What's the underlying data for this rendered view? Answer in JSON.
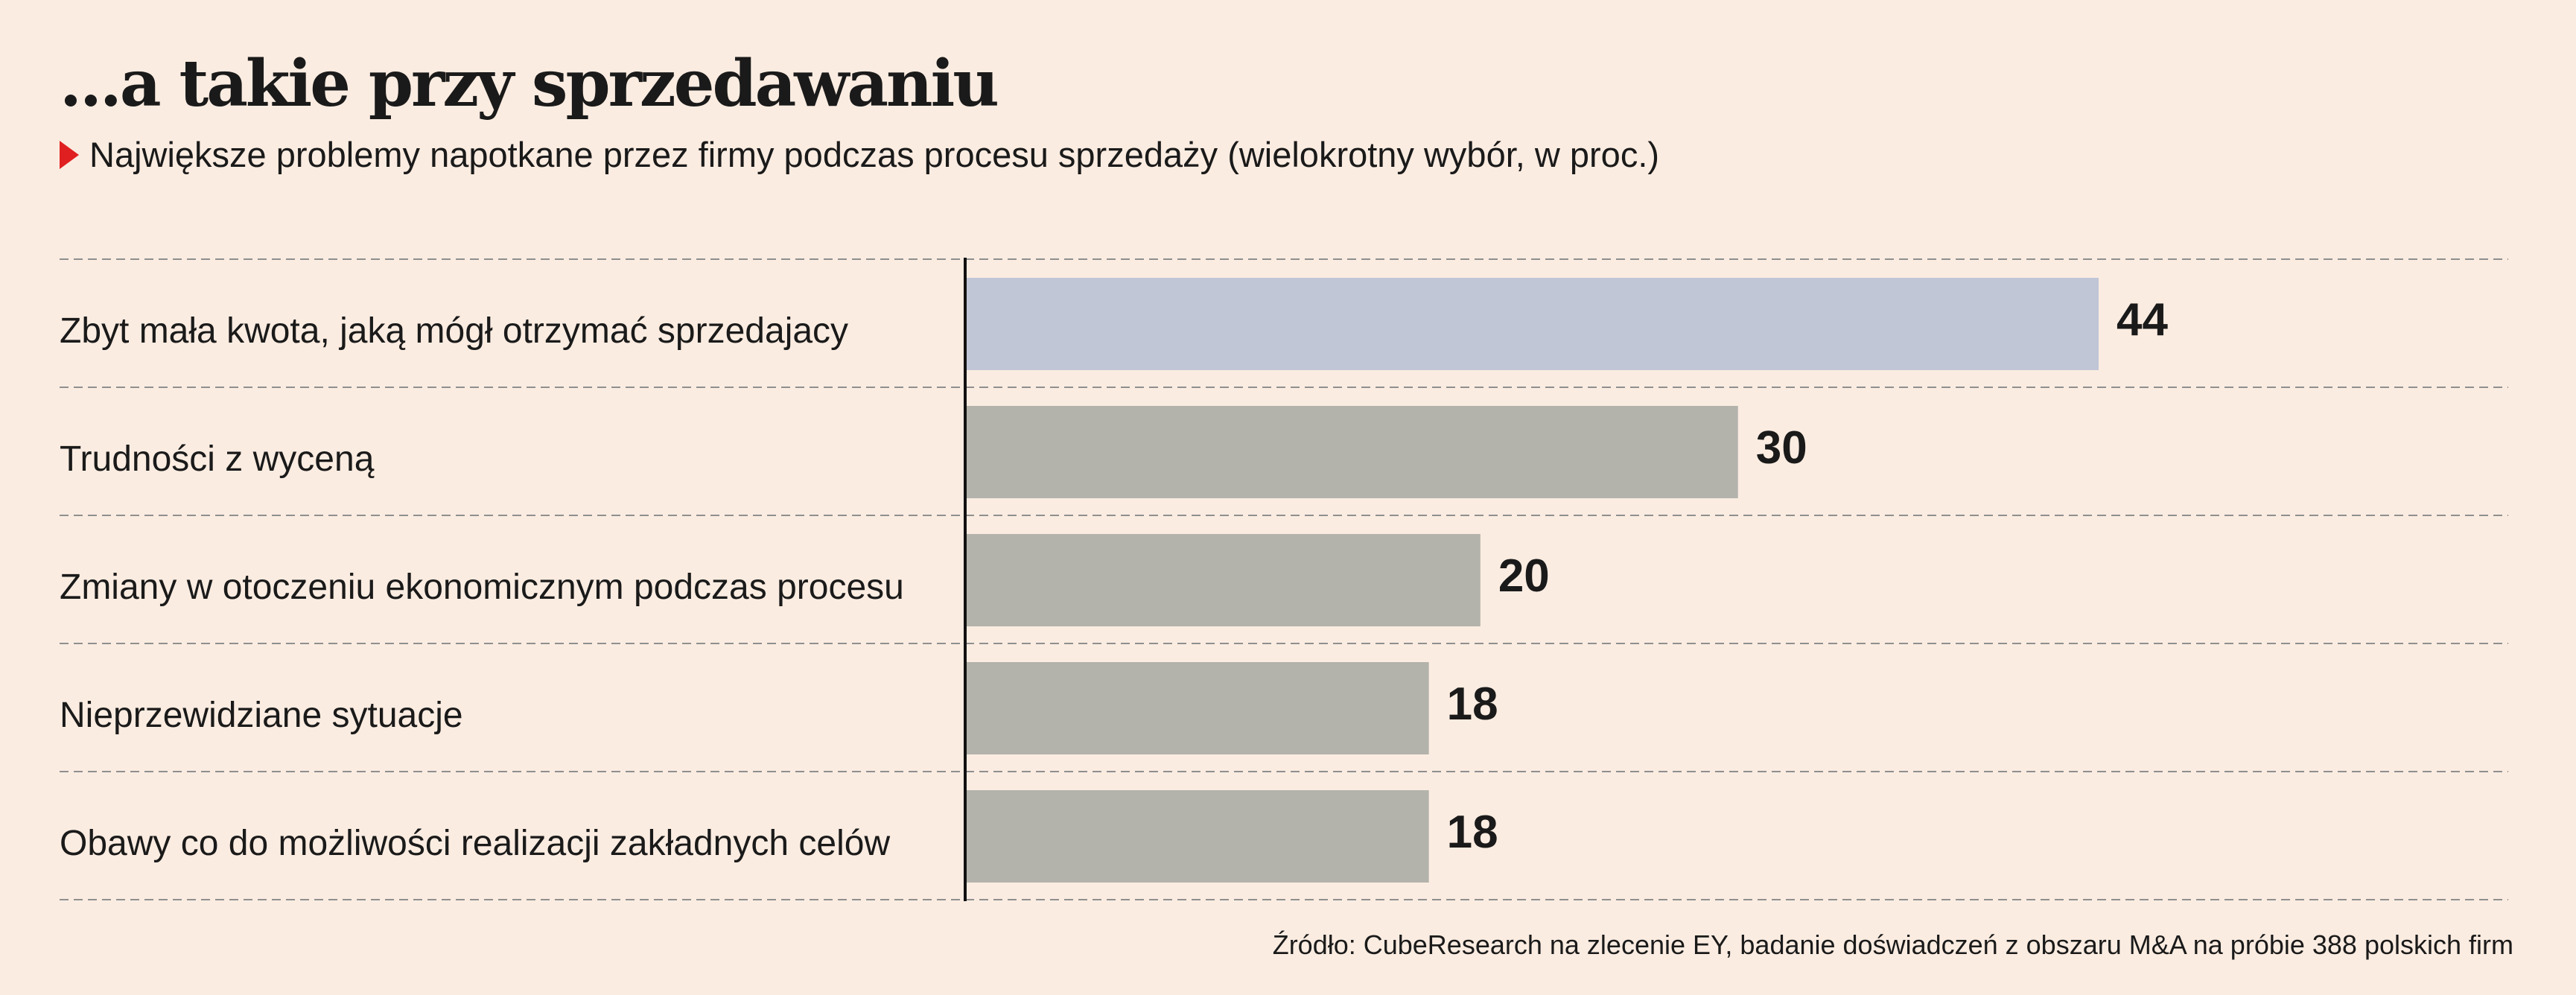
{
  "title": "...a takie przy sprzedawaniu",
  "subtitle": "Największe problemy napotkane przez firmy podczas procesu sprzedaży (wielokrotny wybór, w proc.)",
  "source": "Źródło: CubeResearch na zlecenie EY, badanie doświadczeń z obszaru M&A na próbie 388 polskich firm",
  "colors": {
    "background": "#fbece1",
    "highlight_bar": "#c0c6d6",
    "bar": "#b3b3ab",
    "text": "#1a1a1a",
    "grid": "#8f8f8f",
    "accent": "#e02020"
  },
  "chart_data": {
    "type": "bar",
    "orientation": "horizontal",
    "categories": [
      "Zbyt mała kwota, jaką mógł otrzymać sprzedajacy",
      "Trudności z wyceną",
      "Zmiany w otoczeniu ekonomicznym podczas procesu",
      "Nieprzewidziane sytuacje",
      "Obawy co do możliwości realizacji zakładnych celów"
    ],
    "values": [
      44,
      30,
      20,
      18,
      18
    ],
    "value_labels": [
      "44",
      "30",
      "20",
      "18",
      "18"
    ],
    "highlighted_index": 0,
    "xlim": [
      0,
      60
    ],
    "grid": "dashed horizontal separators",
    "legend": "none",
    "title": "...a takie przy sprzedawaniu",
    "xlabel": "",
    "ylabel": ""
  }
}
